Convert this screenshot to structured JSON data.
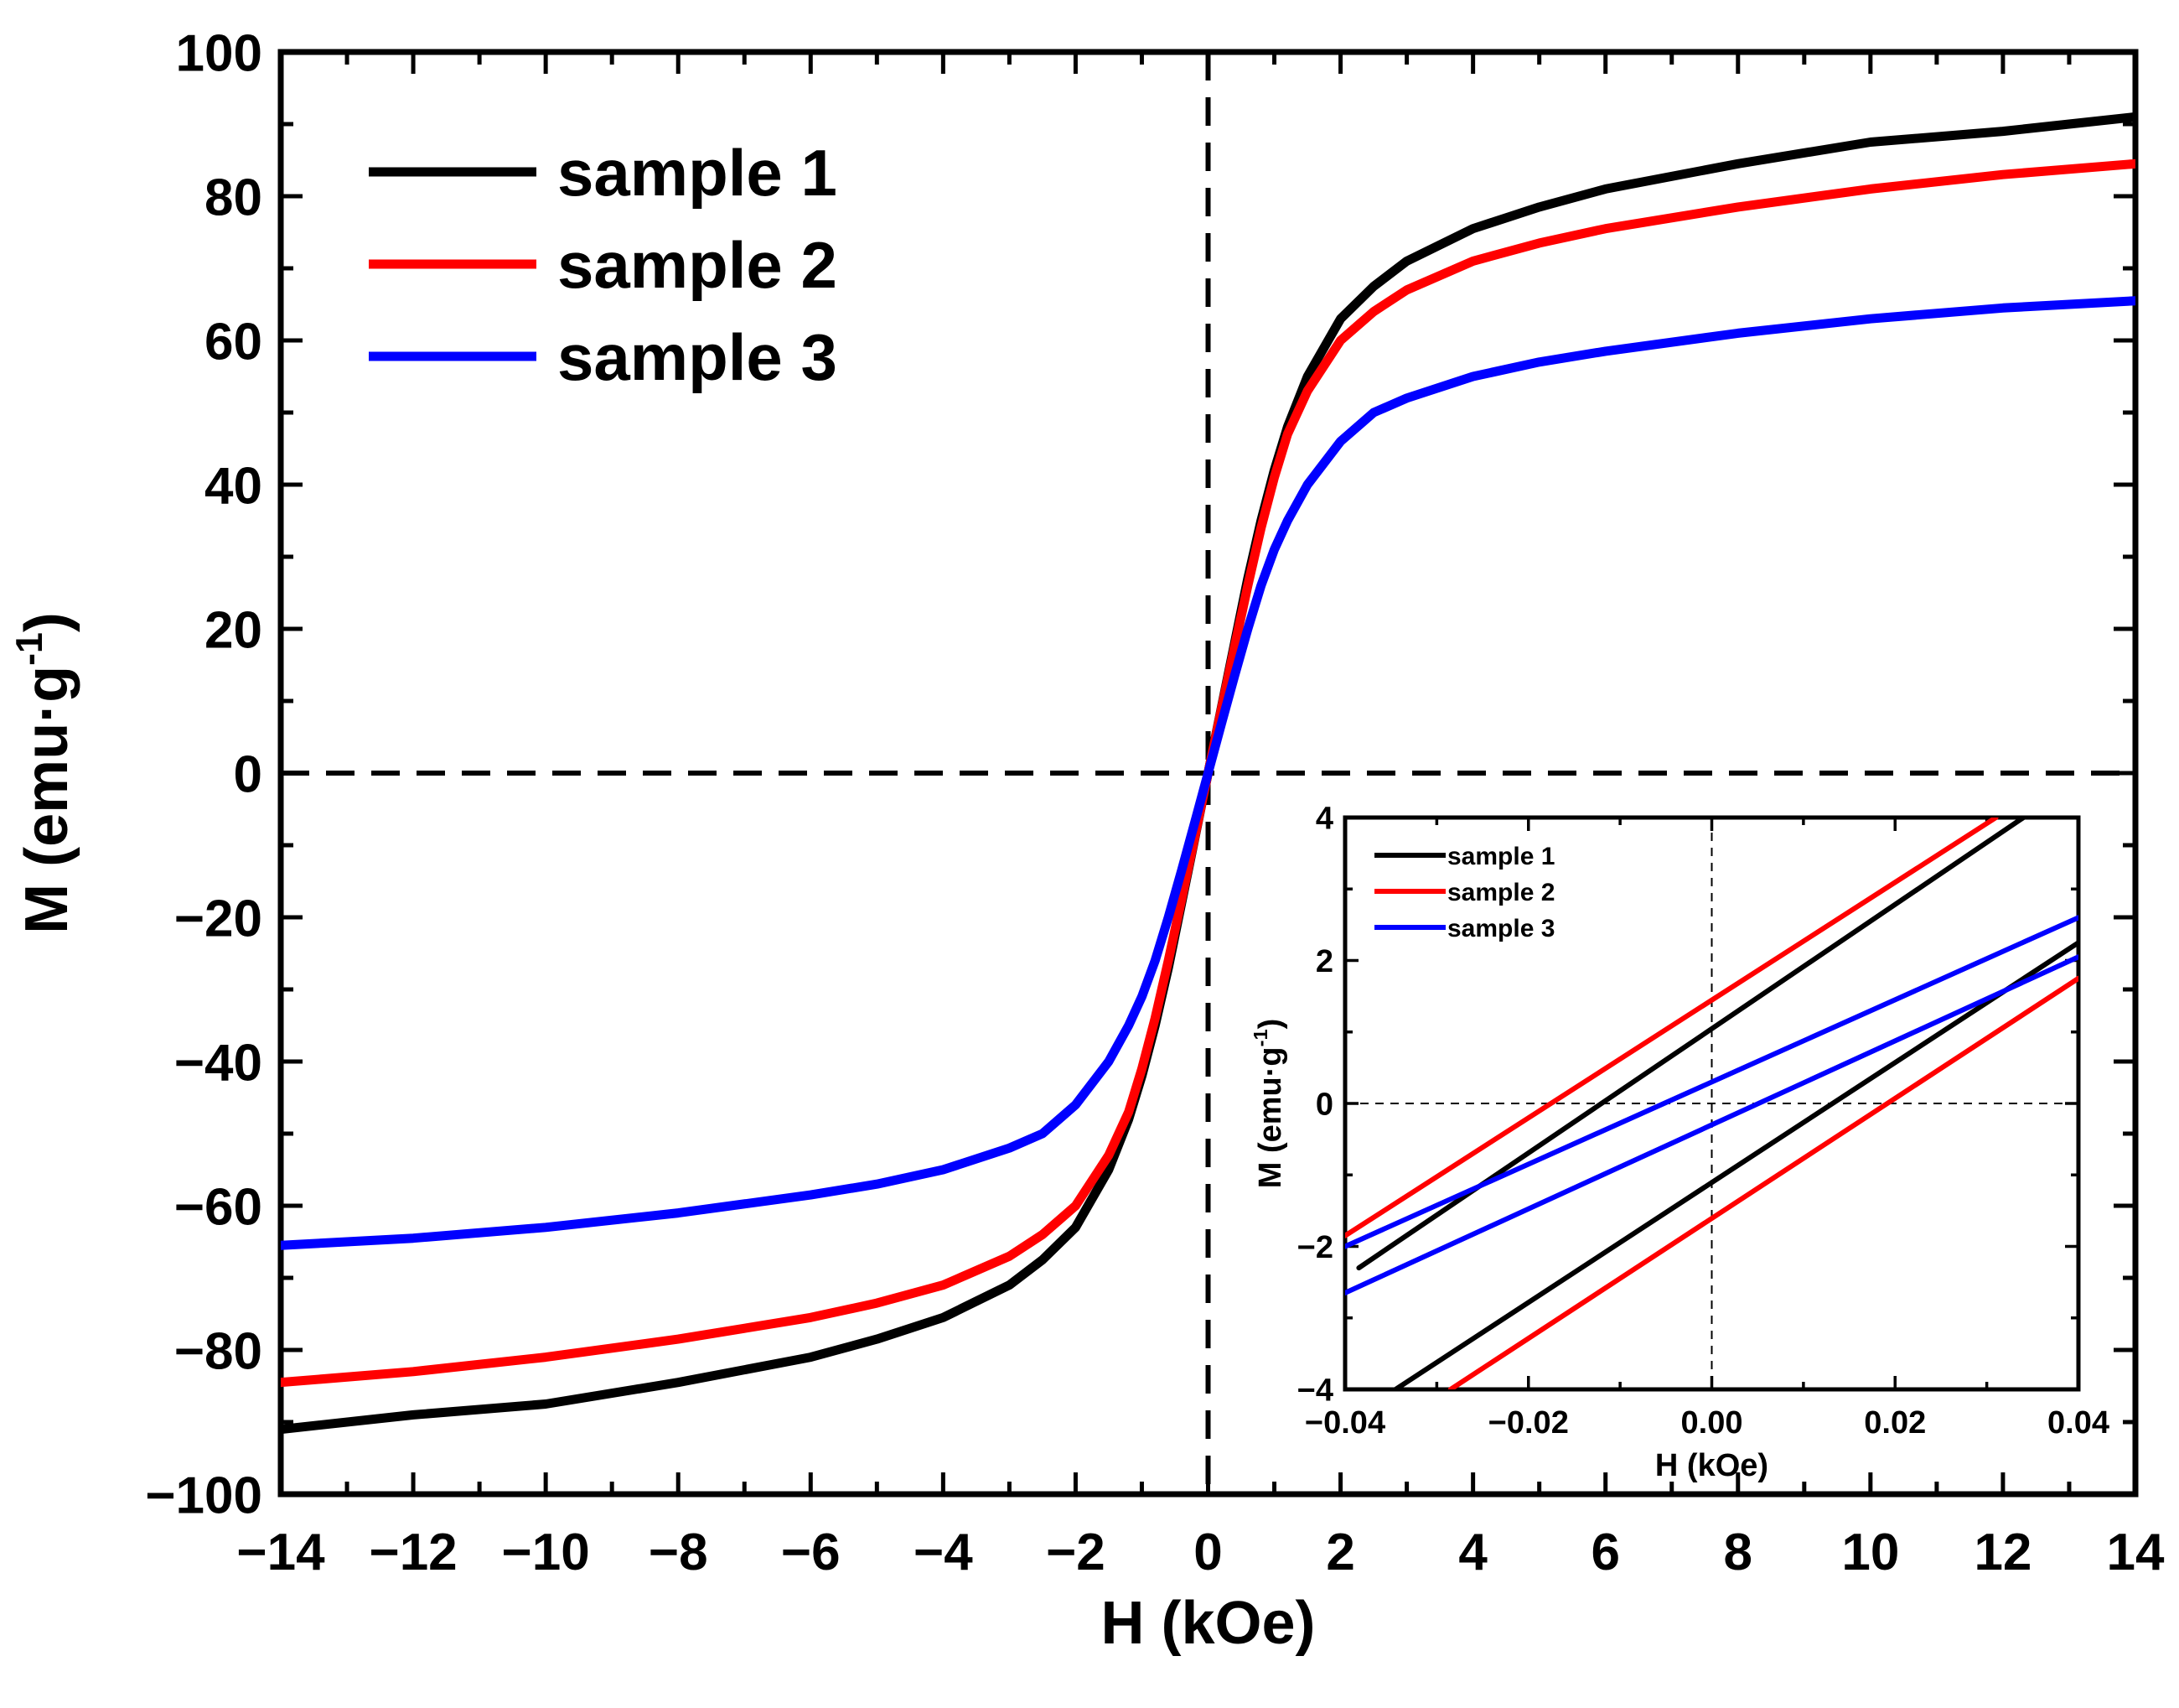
{
  "chart_data": [
    {
      "id": "main",
      "type": "line",
      "xlabel": "H (kOe)",
      "ylabel": "M (emu·g⁻¹)",
      "ylabel_base": "M (emu·g",
      "ylabel_sup": "-1",
      "ylabel_close": ")",
      "xlim": [
        -14,
        14
      ],
      "ylim": [
        -100,
        100
      ],
      "xticks": [
        -14,
        -12,
        -10,
        -8,
        -6,
        -4,
        -2,
        0,
        2,
        4,
        6,
        8,
        10,
        12,
        14
      ],
      "yticks": [
        -100,
        -80,
        -60,
        -40,
        -20,
        0,
        20,
        40,
        60,
        80,
        100
      ],
      "xtick_labels": [
        "−14",
        "−12",
        "−10",
        "−8",
        "−6",
        "−4",
        "−2",
        "0",
        "2",
        "4",
        "6",
        "8",
        "10",
        "12",
        "14"
      ],
      "ytick_labels": [
        "−100",
        "−80",
        "−60",
        "−40",
        "−20",
        "0",
        "20",
        "40",
        "60",
        "80",
        "100"
      ],
      "reference_lines": [
        {
          "axis": "x",
          "value": 0,
          "style": "dashed"
        },
        {
          "axis": "y",
          "value": 0,
          "style": "dashed"
        }
      ],
      "legend_position": "top-left",
      "series": [
        {
          "name": "sample 1",
          "color": "#000000",
          "x": [
            -14,
            -12,
            -10,
            -8,
            -6,
            -5,
            -4,
            -3,
            -2.5,
            -2,
            -1.5,
            -1.2,
            -1,
            -0.8,
            -0.6,
            -0.4,
            -0.2,
            0,
            0.2,
            0.4,
            0.6,
            0.8,
            1,
            1.2,
            1.5,
            2,
            2.5,
            3,
            4,
            5,
            6,
            8,
            10,
            12,
            14
          ],
          "y": [
            -91,
            -89,
            -87.5,
            -84.5,
            -81,
            -78.5,
            -75.5,
            -71,
            -67.5,
            -63,
            -55,
            -48,
            -42,
            -35,
            -27,
            -18,
            -9,
            0,
            9,
            18,
            27,
            35,
            42,
            48,
            55,
            63,
            67.5,
            71,
            75.5,
            78.5,
            81,
            84.5,
            87.5,
            89,
            91
          ]
        },
        {
          "name": "sample 2",
          "color": "#ff0000",
          "x": [
            -14,
            -12,
            -10,
            -8,
            -6,
            -5,
            -4,
            -3,
            -2.5,
            -2,
            -1.5,
            -1.2,
            -1,
            -0.8,
            -0.6,
            -0.4,
            -0.2,
            0,
            0.2,
            0.4,
            0.6,
            0.8,
            1,
            1.2,
            1.5,
            2,
            2.5,
            3,
            4,
            5,
            6,
            8,
            10,
            12,
            14
          ],
          "y": [
            -84.5,
            -83,
            -81,
            -78.5,
            -75.5,
            -73.5,
            -71,
            -67,
            -64,
            -60,
            -53,
            -47,
            -41,
            -34,
            -26,
            -17.5,
            -8.8,
            0,
            8.8,
            17.5,
            26,
            34,
            41,
            47,
            53,
            60,
            64,
            67,
            71,
            73.5,
            75.5,
            78.5,
            81,
            83,
            84.5
          ]
        },
        {
          "name": "sample 3",
          "color": "#0000ff",
          "x": [
            -14,
            -12,
            -10,
            -8,
            -6,
            -5,
            -4,
            -3,
            -2.5,
            -2,
            -1.5,
            -1.2,
            -1,
            -0.8,
            -0.6,
            -0.4,
            -0.2,
            0,
            0.2,
            0.4,
            0.6,
            0.8,
            1,
            1.2,
            1.5,
            2,
            2.5,
            3,
            4,
            5,
            6,
            8,
            10,
            12,
            14
          ],
          "y": [
            -65.5,
            -64.5,
            -63,
            -61,
            -58.5,
            -57,
            -55,
            -52,
            -50,
            -46,
            -40,
            -35,
            -31,
            -26,
            -20,
            -13.5,
            -6.8,
            0,
            6.8,
            13.5,
            20,
            26,
            31,
            35,
            40,
            46,
            50,
            52,
            55,
            57,
            58.5,
            61,
            63,
            64.5,
            65.5
          ]
        }
      ]
    },
    {
      "id": "inset",
      "type": "line",
      "xlabel": "H (kOe)",
      "ylabel": "M (emu·g⁻¹)",
      "ylabel_base": "M (emu·g",
      "ylabel_sup": "-1",
      "ylabel_close": ")",
      "xlim": [
        -0.04,
        0.04
      ],
      "ylim": [
        -4,
        4
      ],
      "xticks": [
        -0.04,
        -0.02,
        0,
        0.02,
        0.04
      ],
      "yticks": [
        -4,
        -2,
        0,
        2,
        4
      ],
      "xtick_labels": [
        "−0.04",
        "−0.02",
        "0.00",
        "0.02",
        "0.04"
      ],
      "ytick_labels": [
        "−4",
        "−2",
        "0",
        "2",
        "4"
      ],
      "reference_lines": [
        {
          "axis": "x",
          "value": 0,
          "style": "dashed"
        },
        {
          "axis": "y",
          "value": 0,
          "style": "dashed"
        }
      ],
      "legend_position": "top-left",
      "series": [
        {
          "name": "sample 1",
          "color": "#000000",
          "branches": [
            {
              "x": [
                -0.0385,
                0.034
              ],
              "y": [
                -2.3,
                4
              ]
            },
            {
              "x": [
                -0.0345,
                0.04
              ],
              "y": [
                -4,
                2.25
              ]
            }
          ]
        },
        {
          "name": "sample 2",
          "color": "#ff0000",
          "branches": [
            {
              "x": [
                -0.04,
                0.031
              ],
              "y": [
                -1.85,
                4
              ]
            },
            {
              "x": [
                -0.0285,
                0.04
              ],
              "y": [
                -4,
                1.75
              ]
            }
          ]
        },
        {
          "name": "sample 3",
          "color": "#0000ff",
          "branches": [
            {
              "x": [
                -0.04,
                0.04
              ],
              "y": [
                -2.0,
                2.6
              ]
            },
            {
              "x": [
                -0.04,
                0.04
              ],
              "y": [
                -2.65,
                2.05
              ]
            }
          ]
        }
      ]
    }
  ]
}
